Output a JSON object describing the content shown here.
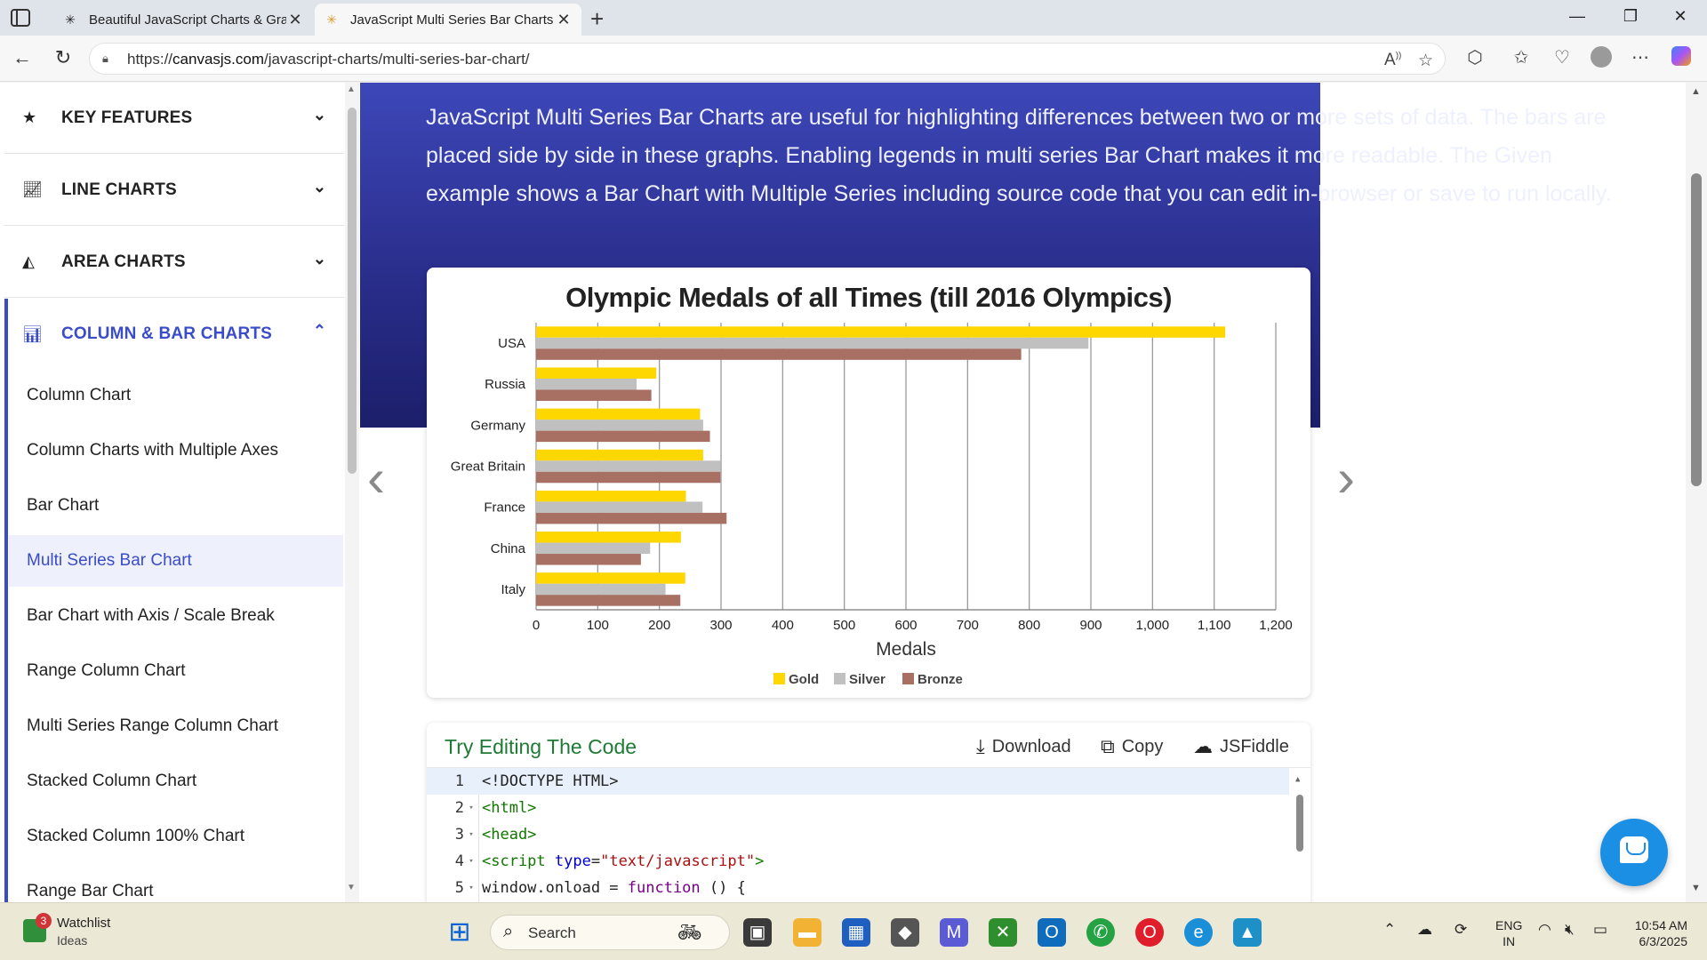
{
  "browser": {
    "tabs": [
      {
        "title": "Beautiful JavaScript Charts & Grap",
        "active": false
      },
      {
        "title": "JavaScript Multi Series Bar Charts",
        "active": true
      }
    ],
    "url_prefix": "https://",
    "url_host": "canvasjs.com",
    "url_path": "/javascript-charts/multi-series-bar-chart/"
  },
  "sidebar": {
    "categories": [
      {
        "label": "KEY FEATURES",
        "icon": "star-icon",
        "open": false
      },
      {
        "label": "LINE CHARTS",
        "icon": "line-chart-icon",
        "open": false
      },
      {
        "label": "AREA CHARTS",
        "icon": "area-chart-icon",
        "open": false
      },
      {
        "label": "COLUMN & BAR CHARTS",
        "icon": "bar-chart-icon",
        "open": true
      }
    ],
    "items": [
      "Column Chart",
      "Column Charts with Multiple Axes",
      "Bar Chart",
      "Multi Series Bar Chart",
      "Bar Chart with Axis / Scale Break",
      "Range Column Chart",
      "Multi Series Range Column Chart",
      "Stacked Column Chart",
      "Stacked Column 100% Chart",
      "Range Bar Chart"
    ],
    "selected_item": "Multi Series Bar Chart"
  },
  "hero": {
    "description": "JavaScript Multi Series Bar Charts are useful for highlighting differences between two or more sets of data. The bars are placed side by side in these graphs. Enabling legends in multi series Bar Chart makes it more readable. The Given example shows a Bar Chart with Multiple Series including source code that you can edit in-browser or save to run locally."
  },
  "chart_data": {
    "type": "bar",
    "orientation": "horizontal",
    "title": "Olympic Medals of all Times (till 2016 Olympics)",
    "xlabel": "Medals",
    "categories": [
      "USA",
      "Russia",
      "Germany",
      "Great Britain",
      "France",
      "China",
      "Italy"
    ],
    "series": [
      {
        "name": "Gold",
        "color": "#FFD700",
        "values": [
          1118,
          195,
          266,
          271,
          243,
          235,
          242
        ]
      },
      {
        "name": "Silver",
        "color": "#C0C0C0",
        "values": [
          896,
          163,
          271,
          299,
          270,
          185,
          210
        ]
      },
      {
        "name": "Bronze",
        "color": "#A77063",
        "values": [
          787,
          187,
          282,
          299,
          309,
          170,
          234
        ]
      }
    ],
    "xlim": [
      0,
      1200
    ],
    "xticks": [
      0,
      100,
      200,
      300,
      400,
      500,
      600,
      700,
      800,
      900,
      1000,
      1100,
      1200
    ],
    "xtick_labels": [
      "0",
      "100",
      "200",
      "300",
      "400",
      "500",
      "600",
      "700",
      "800",
      "900",
      "1,000",
      "1,100",
      "1,200"
    ],
    "grid": true,
    "legend": "bottom"
  },
  "code_editor": {
    "title": "Try Editing The Code",
    "actions": [
      "Download",
      "Copy",
      "JSFiddle"
    ],
    "line_numbers": [
      "1",
      "2",
      "3",
      "4",
      "5"
    ],
    "lines": [
      [
        {
          "t": "<!DOCTYPE HTML>",
          "c": "plain"
        }
      ],
      [
        {
          "t": "<html>",
          "c": "tag"
        }
      ],
      [
        {
          "t": "<head>",
          "c": "tag"
        }
      ],
      [
        {
          "t": "<script ",
          "c": "tag"
        },
        {
          "t": "type",
          "c": "attr"
        },
        {
          "t": "=",
          "c": "plain"
        },
        {
          "t": "\"text/javascript\"",
          "c": "str"
        },
        {
          "t": ">",
          "c": "tag"
        }
      ],
      [
        {
          "t": "window.onload = ",
          "c": "plain"
        },
        {
          "t": "function",
          "c": "kw"
        },
        {
          "t": " () {",
          "c": "plain"
        }
      ]
    ]
  },
  "taskbar": {
    "watchlist_title": "Watchlist",
    "watchlist_sub": "Ideas",
    "watchlist_badge": "3",
    "search_placeholder": "Search",
    "lang_line1": "ENG",
    "lang_line2": "IN",
    "time": "10:54 AM",
    "date": "6/3/2025"
  }
}
